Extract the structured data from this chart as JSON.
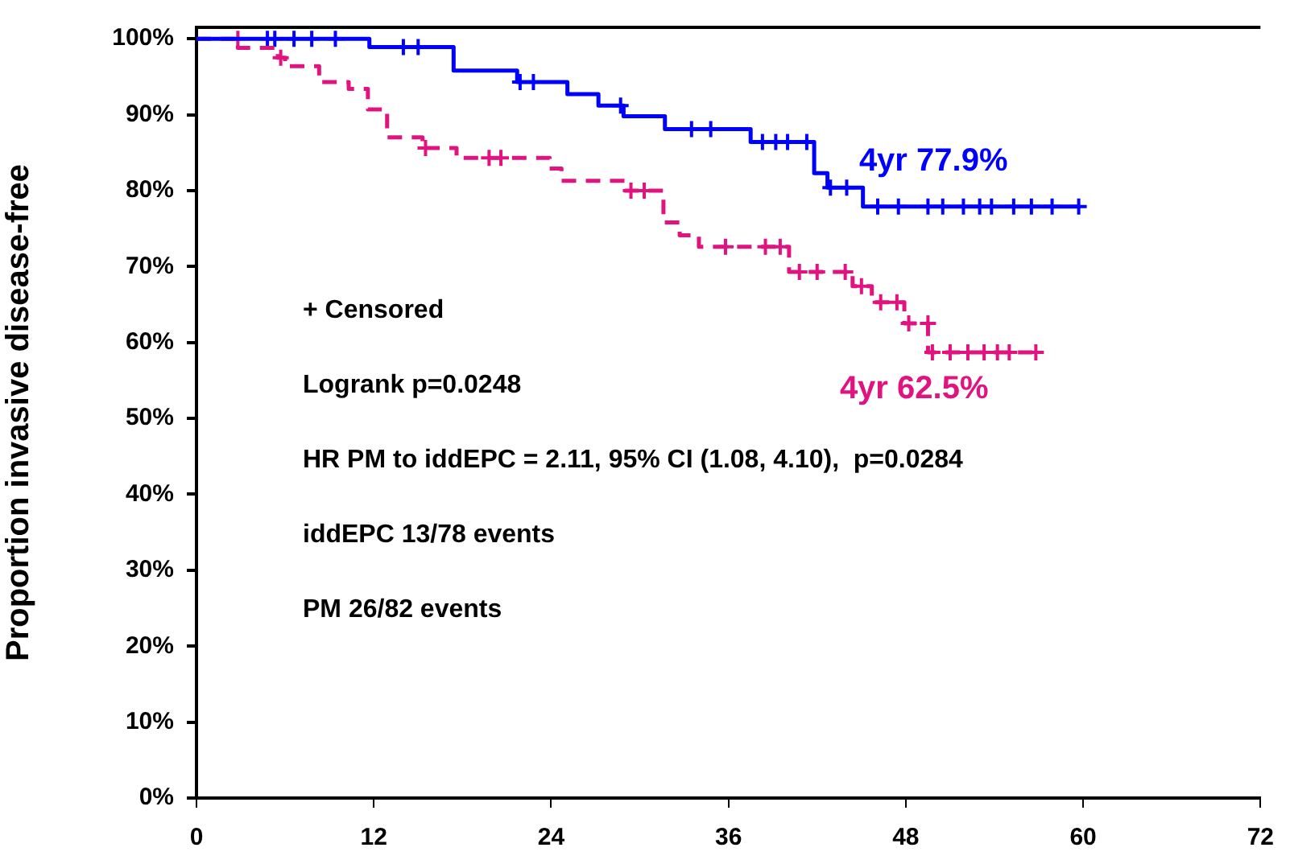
{
  "chart_data": {
    "type": "step",
    "ylabel": "Proportion invasive disease-free",
    "xlim": [
      0,
      72
    ],
    "xticks": [
      0,
      12,
      24,
      36,
      48,
      60,
      72
    ],
    "ylim": [
      0,
      101.5
    ],
    "yticks": [
      {
        "value": 0,
        "label": "0%"
      },
      {
        "value": 10,
        "label": "10%"
      },
      {
        "value": 20,
        "label": "20%"
      },
      {
        "value": 30,
        "label": "30%"
      },
      {
        "value": 40,
        "label": "40%"
      },
      {
        "value": 50,
        "label": "50%"
      },
      {
        "value": 60,
        "label": "60%"
      },
      {
        "value": 70,
        "label": "70%"
      },
      {
        "value": 80,
        "label": "80%"
      },
      {
        "value": 90,
        "label": "90%"
      },
      {
        "value": 100,
        "label": "100%"
      }
    ],
    "grid": false,
    "legend": false,
    "series": [
      {
        "color": "#0000ff",
        "line_style": "solid",
        "marker": "none",
        "x": [
          0,
          11.7,
          17.4,
          21.7,
          25.1,
          27.2,
          28.9,
          31.7,
          37.5,
          41.8,
          42.7,
          45.1,
          59.7
        ],
        "values": [
          100,
          98.9,
          95.8,
          94.3,
          92.7,
          91.2,
          89.8,
          88.1,
          86.4,
          82.3,
          80.4,
          77.9,
          77.9
        ]
      },
      {
        "color": "#e0137f",
        "line_style": "dashed",
        "marker": "none",
        "x": [
          0,
          2.8,
          5.5,
          6.0,
          8.3,
          10.3,
          11.6,
          12.9,
          15.3,
          17.6,
          23.9,
          24.7,
          29.0,
          31.6,
          32.7,
          34.0,
          40.1,
          44.4,
          45.7,
          47.9,
          49.5,
          56.8
        ],
        "values": [
          100,
          98.8,
          97.5,
          96.4,
          94.3,
          93.4,
          90.7,
          87,
          85.6,
          84.3,
          82.9,
          81.3,
          80,
          75.8,
          74.1,
          72.6,
          69.3,
          67.4,
          65.3,
          62.5,
          58.7,
          58.7
        ]
      },
      {
        "type": "scatter",
        "color": "#0000ff",
        "marker": "cross",
        "x": [
          4.8,
          5.3,
          6.6,
          7.8,
          9.4,
          14.0,
          15.0,
          21.9,
          22.8,
          28.7,
          33.5,
          34.8,
          38.3,
          39.2,
          40.0,
          41.3,
          42.9,
          44.0,
          46.1,
          47.5,
          49.5,
          50.5,
          51.9,
          53.0,
          53.8,
          55.3,
          56.5,
          57.9,
          59.7
        ],
        "values": [
          100,
          100,
          100,
          100,
          100,
          98.9,
          98.9,
          94.3,
          94.3,
          91.2,
          88.1,
          88.1,
          86.4,
          86.4,
          86.4,
          86.4,
          80.4,
          80.4,
          77.9,
          77.9,
          77.9,
          77.9,
          77.9,
          77.9,
          77.9,
          77.9,
          77.9,
          77.9,
          77.9
        ]
      },
      {
        "type": "scatter",
        "color": "#e0137f",
        "marker": "cross",
        "x": [
          2.8,
          5.7,
          15.5,
          19.8,
          20.6,
          29.4,
          30.3,
          35.8,
          38.5,
          39.5,
          40.8,
          42.0,
          43.9,
          45.0,
          46.3,
          47.4,
          48.2,
          49.5,
          49.8,
          51.0,
          52.2,
          53.3,
          54.2,
          55.0,
          56.8
        ],
        "values": [
          100,
          97.5,
          85.6,
          84.3,
          84.3,
          80,
          80,
          72.6,
          72.6,
          72.6,
          69.3,
          69.3,
          69.3,
          67.4,
          65.3,
          65.3,
          62.5,
          62.5,
          58.7,
          58.7,
          58.7,
          58.7,
          58.7,
          58.7,
          58.7
        ]
      }
    ],
    "annotations": [
      {
        "text": "4yr 77.9%",
        "x": 48,
        "y": 77.9
      },
      {
        "text": "4yr 62.5%",
        "x": 48,
        "y": 62.5
      },
      "+ Censored",
      "Logrank p=0.0248",
      "HR PM to iddEPC = 2.11, 95% CI (1.08, 4.10),  p=0.0284",
      "iddEPC 13/78 events",
      "PM 26/82 events"
    ]
  }
}
